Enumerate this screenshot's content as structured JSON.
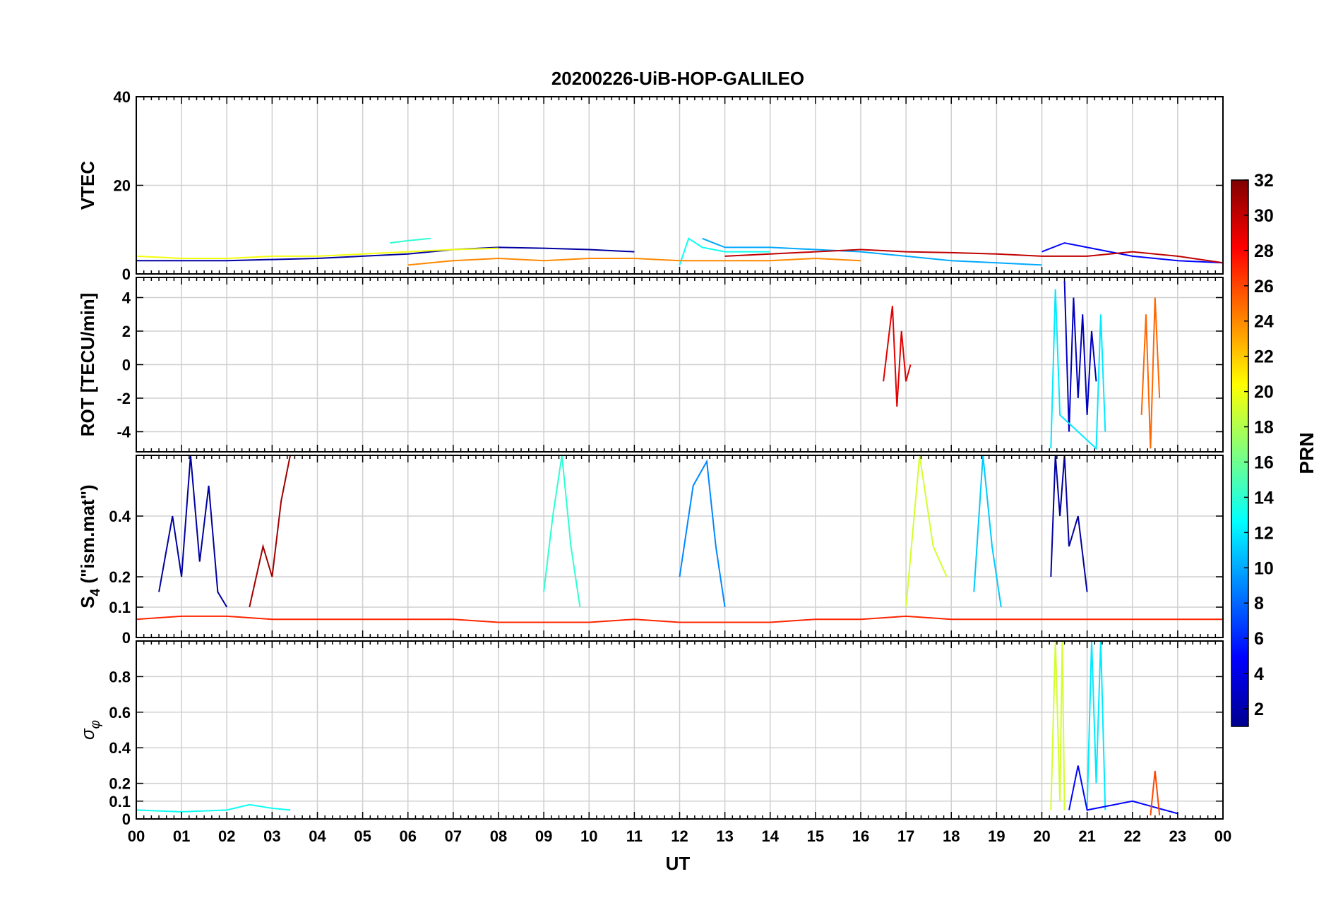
{
  "title": "20200226-UiB-HOP-GALILEO",
  "x_axis": {
    "label": "UT",
    "range_hours": [
      0,
      24
    ],
    "tick_labels": [
      "00",
      "01",
      "02",
      "03",
      "04",
      "05",
      "06",
      "07",
      "08",
      "09",
      "10",
      "11",
      "12",
      "13",
      "14",
      "15",
      "16",
      "17",
      "18",
      "19",
      "20",
      "21",
      "22",
      "23",
      "00"
    ]
  },
  "colorbar": {
    "label": "PRN",
    "range": [
      1,
      32
    ],
    "tick_labels": [
      "2",
      "4",
      "6",
      "8",
      "10",
      "12",
      "14",
      "16",
      "18",
      "20",
      "22",
      "24",
      "26",
      "28",
      "30",
      "32"
    ],
    "colormap": "jet"
  },
  "chart_data": [
    {
      "type": "line",
      "panel": "vtec",
      "ylabel": "VTEC",
      "ylim": [
        0,
        40
      ],
      "yticks": [
        0,
        20,
        40
      ],
      "ytick_labels": [
        "0",
        "20",
        "40"
      ],
      "grid": true,
      "series": [
        {
          "prn": 2,
          "x": [
            0,
            2,
            4,
            6,
            7,
            8,
            9,
            10,
            11
          ],
          "y": [
            3,
            3,
            3.5,
            4.5,
            5.5,
            6,
            5.8,
            5.5,
            5
          ]
        },
        {
          "prn": 5,
          "x": [
            20,
            20.5,
            21,
            21.5,
            22,
            23,
            24
          ],
          "y": [
            5,
            7,
            6,
            5,
            4,
            3,
            2.5
          ]
        },
        {
          "prn": 10,
          "x": [
            12.5,
            13,
            14,
            15,
            16,
            17,
            18,
            19,
            20
          ],
          "y": [
            8,
            6,
            6,
            5.5,
            5,
            4,
            3,
            2.5,
            2
          ]
        },
        {
          "prn": 13,
          "x": [
            12,
            12.2,
            12.5,
            13,
            14
          ],
          "y": [
            2,
            8,
            6,
            5,
            5
          ]
        },
        {
          "prn": 14,
          "x": [
            5.6,
            6,
            6.5
          ],
          "y": [
            7,
            7.5,
            8
          ]
        },
        {
          "prn": 20,
          "x": [
            0,
            1,
            2,
            3,
            4,
            5,
            6,
            7,
            8
          ],
          "y": [
            4,
            3.5,
            3.5,
            4,
            4,
            4.5,
            5,
            5.5,
            5.8
          ]
        },
        {
          "prn": 24,
          "x": [
            6,
            7,
            8,
            9,
            10,
            11,
            12,
            13,
            14,
            15,
            16
          ],
          "y": [
            2,
            3,
            3.5,
            3,
            3.5,
            3.5,
            3,
            3,
            3,
            3.5,
            3
          ]
        },
        {
          "prn": 30,
          "x": [
            13,
            14,
            15,
            16,
            17,
            18,
            19,
            20,
            21,
            22,
            23,
            24
          ],
          "y": [
            4,
            4.5,
            5,
            5.5,
            5,
            4.8,
            4.5,
            4,
            4,
            5,
            4,
            2.5
          ]
        }
      ]
    },
    {
      "type": "line",
      "panel": "rot",
      "ylabel": "ROT [TECU/min]",
      "ylim": [
        -5.2,
        5.2
      ],
      "yticks": [
        -4,
        -2,
        0,
        2,
        4
      ],
      "ytick_labels": [
        "-4",
        "-2",
        "0",
        "2",
        "4"
      ],
      "grid": true,
      "series": [
        {
          "prn": 3,
          "x": [
            20.5,
            20.6,
            20.7,
            20.8,
            20.9,
            21,
            21.1,
            21.2
          ],
          "y": [
            5,
            -4,
            4,
            -2,
            3,
            -3,
            2,
            -1
          ]
        },
        {
          "prn": 12,
          "x": [
            20.2,
            20.3,
            20.4,
            21.2,
            21.3,
            21.4
          ],
          "y": [
            -5,
            4.5,
            -3,
            -5,
            3,
            -4
          ]
        },
        {
          "prn": 25,
          "x": [
            22.2,
            22.3,
            22.4,
            22.5,
            22.6
          ],
          "y": [
            -3,
            3,
            -5,
            4,
            -2
          ]
        },
        {
          "prn": 29,
          "x": [
            16.5,
            16.7,
            16.8,
            16.9,
            17,
            17.1
          ],
          "y": [
            -1,
            3.5,
            -2.5,
            2,
            -1,
            0
          ]
        }
      ]
    },
    {
      "type": "line",
      "panel": "s4",
      "ylabel": "S4 (\"ism.mat\")",
      "ylabel_main": "S",
      "ylabel_sub": "4",
      "ylabel_rest": " (\"ism.mat\")",
      "ylim": [
        0,
        0.6
      ],
      "yticks": [
        0,
        0.1,
        0.2,
        0.4
      ],
      "ytick_labels": [
        "0",
        "0.1",
        "0.2",
        "0.4"
      ],
      "grid": true,
      "series": [
        {
          "prn": 2,
          "x": [
            0.5,
            0.8,
            1,
            1.2,
            1.4,
            1.6,
            1.8,
            2
          ],
          "y": [
            0.15,
            0.4,
            0.2,
            0.6,
            0.25,
            0.5,
            0.15,
            0.1
          ]
        },
        {
          "prn": 2,
          "x": [
            20.2,
            20.3,
            20.4,
            20.5,
            20.6,
            20.8,
            21
          ],
          "y": [
            0.2,
            0.6,
            0.4,
            0.6,
            0.3,
            0.4,
            0.15
          ]
        },
        {
          "prn": 9,
          "x": [
            12,
            12.3,
            12.6,
            12.8,
            13
          ],
          "y": [
            0.2,
            0.5,
            0.58,
            0.3,
            0.1
          ]
        },
        {
          "prn": 14,
          "x": [
            9,
            9.2,
            9.4,
            9.6,
            9.8
          ],
          "y": [
            0.15,
            0.4,
            0.6,
            0.3,
            0.1
          ]
        },
        {
          "prn": 11,
          "x": [
            18.5,
            18.7,
            18.9,
            19.1
          ],
          "y": [
            0.15,
            0.6,
            0.3,
            0.1
          ]
        },
        {
          "prn": 19,
          "x": [
            17,
            17.3,
            17.6,
            17.9
          ],
          "y": [
            0.1,
            0.6,
            0.3,
            0.2
          ]
        },
        {
          "prn": 31,
          "x": [
            2.5,
            2.8,
            3,
            3.2,
            3.4
          ],
          "y": [
            0.1,
            0.3,
            0.2,
            0.45,
            0.6
          ]
        },
        {
          "prn": 27,
          "x": [
            0,
            1,
            2,
            3,
            4,
            5,
            6,
            7,
            8,
            9,
            10,
            11,
            12,
            13,
            14,
            15,
            16,
            17,
            18,
            19,
            20,
            21,
            22,
            23,
            24
          ],
          "y": [
            0.06,
            0.07,
            0.07,
            0.06,
            0.06,
            0.06,
            0.06,
            0.06,
            0.05,
            0.05,
            0.05,
            0.06,
            0.05,
            0.05,
            0.05,
            0.06,
            0.06,
            0.07,
            0.06,
            0.06,
            0.06,
            0.06,
            0.06,
            0.06,
            0.06
          ]
        }
      ]
    },
    {
      "type": "line",
      "panel": "sigma_phi",
      "ylabel": "σφ",
      "ylabel_main": "σ",
      "ylabel_sub": "φ",
      "ylim": [
        0,
        1
      ],
      "yticks": [
        0,
        0.1,
        0.2,
        0.4,
        0.6,
        0.8
      ],
      "ytick_labels": [
        "0",
        "0.1",
        "0.2",
        "0.4",
        "0.6",
        "0.8"
      ],
      "grid": true,
      "series": [
        {
          "prn": 13,
          "x": [
            0,
            1,
            2,
            2.5,
            3,
            3.4
          ],
          "y": [
            0.05,
            0.04,
            0.05,
            0.08,
            0.06,
            0.05
          ]
        },
        {
          "prn": 19,
          "x": [
            20.2,
            20.3,
            20.4,
            20.45,
            20.5
          ],
          "y": [
            0.05,
            1,
            0.1,
            1,
            0.05
          ]
        },
        {
          "prn": 12,
          "x": [
            21,
            21.1,
            21.2,
            21.3,
            21.4
          ],
          "y": [
            0.05,
            1,
            0.2,
            1,
            0.05
          ]
        },
        {
          "prn": 5,
          "x": [
            20.6,
            20.8,
            21,
            22,
            23
          ],
          "y": [
            0.05,
            0.3,
            0.05,
            0.1,
            0.03
          ]
        },
        {
          "prn": 26,
          "x": [
            22.4,
            22.5,
            22.6
          ],
          "y": [
            0.02,
            0.27,
            0.02
          ]
        }
      ]
    }
  ]
}
